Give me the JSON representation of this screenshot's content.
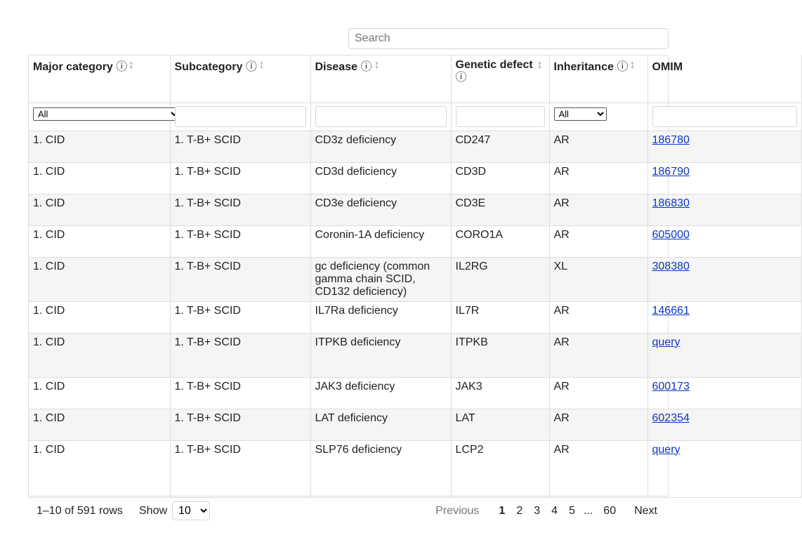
{
  "search": {
    "placeholder": "Search"
  },
  "table": {
    "columns": [
      {
        "label": "Major category",
        "info": "ⓘ"
      },
      {
        "label": "Subcategory",
        "info": "ⓘ"
      },
      {
        "label": "Disease",
        "info": "ⓘ"
      },
      {
        "label": "Genetic defect",
        "info": "ⓘ"
      },
      {
        "label": "Inheritance",
        "info": "ⓘ"
      },
      {
        "label": "OMIM",
        "info": ""
      }
    ],
    "filters": {
      "major_category": "All",
      "subcategory": "",
      "disease": "",
      "genetic_defect": "",
      "inheritance": "All",
      "omim": ""
    },
    "rows": [
      {
        "major": "1. CID",
        "sub": "1. T-B+ SCID",
        "disease": "CD3z deficiency",
        "gene": "CD247",
        "inh": "AR",
        "omim": "186780"
      },
      {
        "major": "1. CID",
        "sub": "1. T-B+ SCID",
        "disease": "CD3d deficiency",
        "gene": "CD3D",
        "inh": "AR",
        "omim": "186790"
      },
      {
        "major": "1. CID",
        "sub": "1. T-B+ SCID",
        "disease": "CD3e deficiency",
        "gene": "CD3E",
        "inh": "AR",
        "omim": "186830"
      },
      {
        "major": "1. CID",
        "sub": "1. T-B+ SCID",
        "disease": "Coronin-1A deficiency",
        "gene": "CORO1A",
        "inh": "AR",
        "omim": "605000"
      },
      {
        "major": "1. CID",
        "sub": "1. T-B+ SCID",
        "disease": "gc deficiency (common gamma chain SCID, CD132 deficiency)",
        "gene": "IL2RG",
        "inh": "XL",
        "omim": "308380"
      },
      {
        "major": "1. CID",
        "sub": "1. T-B+ SCID",
        "disease": "IL7Ra deficiency",
        "gene": "IL7R",
        "inh": "AR",
        "omim": "146661"
      },
      {
        "major": "1. CID",
        "sub": "1. T-B+ SCID",
        "disease": "ITPKB deficiency",
        "gene": "ITPKB",
        "inh": "AR",
        "omim": "query"
      },
      {
        "major": "1. CID",
        "sub": "1. T-B+ SCID",
        "disease": "JAK3 deficiency",
        "gene": "JAK3",
        "inh": "AR",
        "omim": "600173"
      },
      {
        "major": "1. CID",
        "sub": "1. T-B+ SCID",
        "disease": "LAT deficiency",
        "gene": "LAT",
        "inh": "AR",
        "omim": "602354"
      },
      {
        "major": "1. CID",
        "sub": "1. T-B+ SCID",
        "disease": "SLP76 deficiency",
        "gene": "LCP2",
        "inh": "AR",
        "omim": "query"
      }
    ]
  },
  "footer": {
    "rows_info": "1–10 of 591 rows",
    "show_label": "Show",
    "page_size": "10",
    "previous": "Previous",
    "pages": [
      "1",
      "2",
      "3",
      "4",
      "5"
    ],
    "ellipsis": "...",
    "last_page": "60",
    "next": "Next"
  },
  "colors": {
    "link": "#0a36c8",
    "stripe": "#f5f5f5",
    "border": "#dddddd"
  },
  "icons": {
    "info": "info-circle-icon",
    "sort": "sort-arrows-icon"
  }
}
